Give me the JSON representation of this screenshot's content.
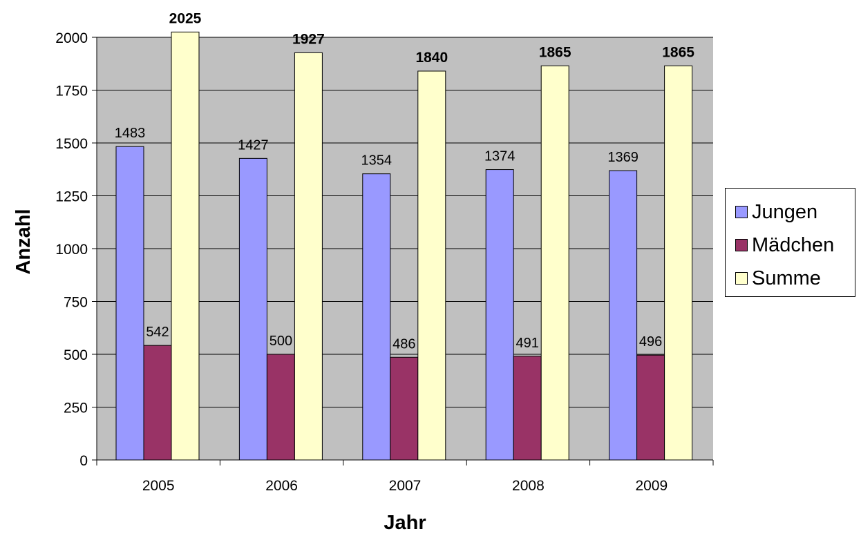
{
  "chart_data": {
    "type": "bar",
    "categories": [
      "2005",
      "2006",
      "2007",
      "2008",
      "2009"
    ],
    "series": [
      {
        "name": "Jungen",
        "values": [
          1483,
          1427,
          1354,
          1374,
          1369
        ],
        "color": "#9999ff",
        "label_bold": false
      },
      {
        "name": "Mädchen",
        "values": [
          542,
          500,
          486,
          491,
          496
        ],
        "color": "#993366",
        "label_bold": false
      },
      {
        "name": "Summe",
        "values": [
          2025,
          1927,
          1840,
          1865,
          1865
        ],
        "color": "#ffffcc",
        "label_bold": true
      }
    ],
    "xlabel": "Jahr",
    "ylabel": "Anzahl",
    "ylim": [
      0,
      2000
    ],
    "yticks": [
      0,
      250,
      500,
      750,
      1000,
      1250,
      1500,
      1750,
      2000
    ],
    "grid": true,
    "plot_background": "#c0c0c0",
    "legend_position": "right"
  }
}
